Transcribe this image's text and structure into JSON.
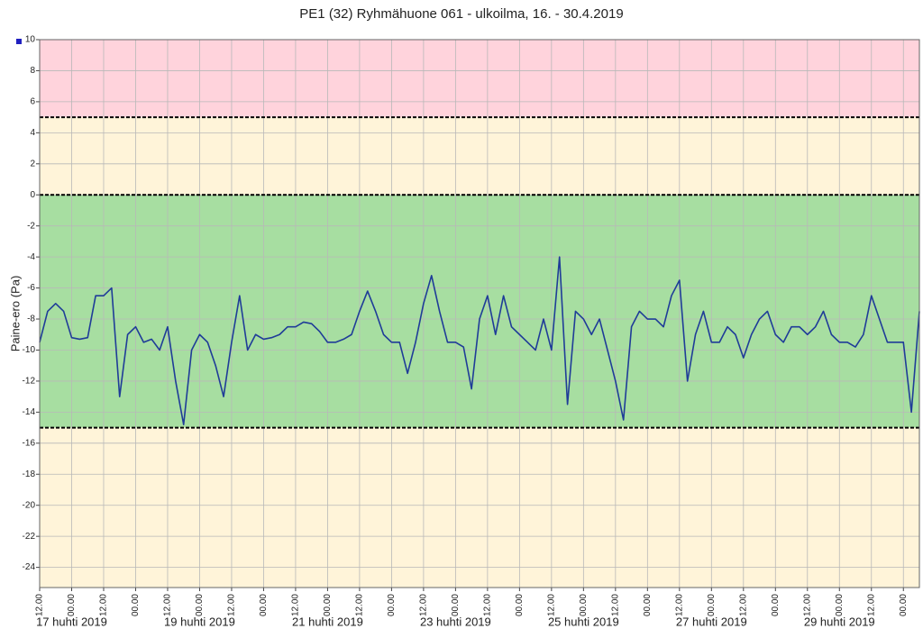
{
  "chart_data": {
    "type": "line",
    "title": "PE1 (32) Ryhmähuone 061 - ulkoilma, 16. - 30.4.2019",
    "ylabel": "Paine-ero (Pa)",
    "ylim": [
      -25.3,
      10
    ],
    "yticks": [
      10,
      8,
      6,
      4,
      2,
      0,
      -2,
      -4,
      -6,
      -8,
      -10,
      -12,
      -14,
      -16,
      -18,
      -20,
      -22,
      -24
    ],
    "xlim": [
      "2019-04-16T12:00",
      "2019-04-30T06:00"
    ],
    "grid": true,
    "bands": [
      {
        "from": 5,
        "to": 10,
        "color": "#ffd3dc"
      },
      {
        "from": 0,
        "to": 5,
        "color": "#fff4d9"
      },
      {
        "from": -15,
        "to": 0,
        "color": "#a7dea1"
      },
      {
        "from": -25.3,
        "to": -15,
        "color": "#fff4d9"
      }
    ],
    "limit_lines": [
      5,
      0,
      -15
    ],
    "xticks": [
      {
        "value": "2019-04-16T12:00",
        "label": "12.00"
      },
      {
        "value": "2019-04-17T00:00",
        "label": "00.00"
      },
      {
        "value": "2019-04-17T12:00",
        "label": "12.00"
      },
      {
        "value": "2019-04-18T00:00",
        "label": "00.00"
      },
      {
        "value": "2019-04-18T12:00",
        "label": "12.00"
      },
      {
        "value": "2019-04-19T00:00",
        "label": "00.00"
      },
      {
        "value": "2019-04-19T12:00",
        "label": "12.00"
      },
      {
        "value": "2019-04-20T00:00",
        "label": "00.00"
      },
      {
        "value": "2019-04-20T12:00",
        "label": "12.00"
      },
      {
        "value": "2019-04-21T00:00",
        "label": "00.00"
      },
      {
        "value": "2019-04-21T12:00",
        "label": "12.00"
      },
      {
        "value": "2019-04-22T00:00",
        "label": "00.00"
      },
      {
        "value": "2019-04-22T12:00",
        "label": "12.00"
      },
      {
        "value": "2019-04-23T00:00",
        "label": "00.00"
      },
      {
        "value": "2019-04-23T12:00",
        "label": "12.00"
      },
      {
        "value": "2019-04-24T00:00",
        "label": "00.00"
      },
      {
        "value": "2019-04-24T12:00",
        "label": "12.00"
      },
      {
        "value": "2019-04-25T00:00",
        "label": "00.00"
      },
      {
        "value": "2019-04-25T12:00",
        "label": "12.00"
      },
      {
        "value": "2019-04-26T00:00",
        "label": "00.00"
      },
      {
        "value": "2019-04-26T12:00",
        "label": "12.00"
      },
      {
        "value": "2019-04-27T00:00",
        "label": "00.00"
      },
      {
        "value": "2019-04-27T12:00",
        "label": "12.00"
      },
      {
        "value": "2019-04-28T00:00",
        "label": "00.00"
      },
      {
        "value": "2019-04-28T12:00",
        "label": "12.00"
      },
      {
        "value": "2019-04-29T00:00",
        "label": "00.00"
      },
      {
        "value": "2019-04-29T12:00",
        "label": "12.00"
      },
      {
        "value": "2019-04-30T00:00",
        "label": "00.00"
      }
    ],
    "day_labels": [
      {
        "value": "2019-04-17T00:00",
        "label": "17 huhti 2019"
      },
      {
        "value": "2019-04-19T00:00",
        "label": "19 huhti 2019"
      },
      {
        "value": "2019-04-21T00:00",
        "label": "21 huhti 2019"
      },
      {
        "value": "2019-04-23T00:00",
        "label": "23 huhti 2019"
      },
      {
        "value": "2019-04-25T00:00",
        "label": "25 huhti 2019"
      },
      {
        "value": "2019-04-27T00:00",
        "label": "27 huhti 2019"
      },
      {
        "value": "2019-04-29T00:00",
        "label": "29 huhti 2019"
      }
    ],
    "x": [
      "2019-04-16T12:00",
      "2019-04-16T15:00",
      "2019-04-16T18:00",
      "2019-04-16T21:00",
      "2019-04-17T00:00",
      "2019-04-17T03:00",
      "2019-04-17T06:00",
      "2019-04-17T09:00",
      "2019-04-17T12:00",
      "2019-04-17T15:00",
      "2019-04-17T18:00",
      "2019-04-17T21:00",
      "2019-04-18T00:00",
      "2019-04-18T03:00",
      "2019-04-18T06:00",
      "2019-04-18T09:00",
      "2019-04-18T12:00",
      "2019-04-18T15:00",
      "2019-04-18T18:00",
      "2019-04-18T21:00",
      "2019-04-19T00:00",
      "2019-04-19T03:00",
      "2019-04-19T06:00",
      "2019-04-19T09:00",
      "2019-04-19T12:00",
      "2019-04-19T15:00",
      "2019-04-19T18:00",
      "2019-04-19T21:00",
      "2019-04-20T00:00",
      "2019-04-20T03:00",
      "2019-04-20T06:00",
      "2019-04-20T09:00",
      "2019-04-20T12:00",
      "2019-04-20T15:00",
      "2019-04-20T18:00",
      "2019-04-20T21:00",
      "2019-04-21T00:00",
      "2019-04-21T03:00",
      "2019-04-21T06:00",
      "2019-04-21T09:00",
      "2019-04-21T12:00",
      "2019-04-21T15:00",
      "2019-04-21T18:00",
      "2019-04-21T21:00",
      "2019-04-22T00:00",
      "2019-04-22T03:00",
      "2019-04-22T06:00",
      "2019-04-22T09:00",
      "2019-04-22T12:00",
      "2019-04-22T15:00",
      "2019-04-22T18:00",
      "2019-04-22T21:00",
      "2019-04-23T00:00",
      "2019-04-23T03:00",
      "2019-04-23T06:00",
      "2019-04-23T09:00",
      "2019-04-23T12:00",
      "2019-04-23T15:00",
      "2019-04-23T18:00",
      "2019-04-23T21:00",
      "2019-04-24T00:00",
      "2019-04-24T03:00",
      "2019-04-24T06:00",
      "2019-04-24T09:00",
      "2019-04-24T12:00",
      "2019-04-24T15:00",
      "2019-04-24T18:00",
      "2019-04-24T21:00",
      "2019-04-25T00:00",
      "2019-04-25T03:00",
      "2019-04-25T06:00",
      "2019-04-25T09:00",
      "2019-04-25T12:00",
      "2019-04-25T15:00",
      "2019-04-25T18:00",
      "2019-04-25T21:00",
      "2019-04-26T00:00",
      "2019-04-26T03:00",
      "2019-04-26T06:00",
      "2019-04-26T09:00",
      "2019-04-26T12:00",
      "2019-04-26T15:00",
      "2019-04-26T18:00",
      "2019-04-26T21:00",
      "2019-04-27T00:00",
      "2019-04-27T03:00",
      "2019-04-27T06:00",
      "2019-04-27T09:00",
      "2019-04-27T12:00",
      "2019-04-27T15:00",
      "2019-04-27T18:00",
      "2019-04-27T21:00",
      "2019-04-28T00:00",
      "2019-04-28T03:00",
      "2019-04-28T06:00",
      "2019-04-28T09:00",
      "2019-04-28T12:00",
      "2019-04-28T15:00",
      "2019-04-28T18:00",
      "2019-04-28T21:00",
      "2019-04-29T00:00",
      "2019-04-29T03:00",
      "2019-04-29T06:00",
      "2019-04-29T09:00",
      "2019-04-29T12:00",
      "2019-04-29T15:00",
      "2019-04-29T18:00",
      "2019-04-29T21:00",
      "2019-04-30T00:00",
      "2019-04-30T03:00",
      "2019-04-30T06:00"
    ],
    "series": [
      {
        "color": "#1f3c98",
        "values": [
          -9.5,
          -7.5,
          -7,
          -7.5,
          -9.2,
          -9.3,
          -9.2,
          -6.5,
          -6.5,
          -6,
          -13,
          -9,
          -8.5,
          -9.5,
          -9.3,
          -10,
          -8.5,
          -12,
          -14.8,
          -10,
          -9,
          -9.5,
          -11,
          -13,
          -9.5,
          -6.5,
          -10,
          -9,
          -9.3,
          -9.2,
          -9,
          -8.5,
          -8.5,
          -8.2,
          -8.3,
          -8.8,
          -9.5,
          -9.5,
          -9.3,
          -9,
          -7.5,
          -6.2,
          -7.5,
          -9,
          -9.5,
          -9.5,
          -11.5,
          -9.5,
          -7,
          -5.2,
          -7.5,
          -9.5,
          -9.5,
          -9.8,
          -12.5,
          -8,
          -6.5,
          -9,
          -6.5,
          -8.5,
          -9,
          -9.5,
          -10,
          -8,
          -10,
          -4,
          -13.5,
          -7.5,
          -8,
          -9,
          -8,
          -10,
          -12,
          -14.5,
          -8.5,
          -7.5,
          -8,
          -8,
          -8.5,
          -6.5,
          -5.5,
          -12,
          -9,
          -7.5,
          -9.5,
          -9.5,
          -8.5,
          -9,
          -10.5,
          -9,
          -8,
          -7.5,
          -9,
          -9.5,
          -8.5,
          -8.5,
          -9,
          -8.5,
          -7.5,
          -9,
          -9.5,
          -9.5,
          -9.8,
          -9,
          -6.5,
          -8,
          -9.5,
          -9.5,
          -9.5,
          -14,
          -7.5
        ]
      }
    ]
  }
}
